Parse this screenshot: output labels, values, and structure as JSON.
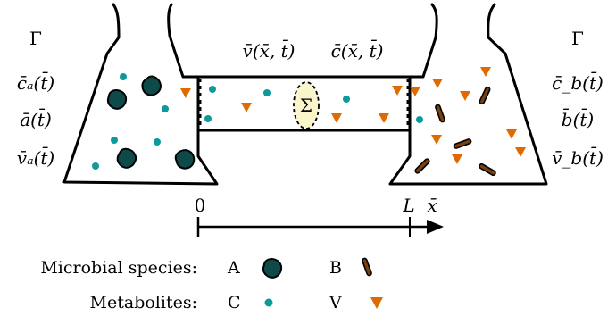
{
  "left_flask": {
    "gamma": "Γ",
    "c_label": "c̄ₐ(t̄)",
    "a_label": "ā(t̄)",
    "v_label": "v̄ₐ(t̄)"
  },
  "right_flask": {
    "gamma": "Γ",
    "c_label": "c̄_b(t̄)",
    "b_label": "b̄(t̄)",
    "v_label": "v̄_b(t̄)"
  },
  "channel": {
    "v_label": "v̄(x̄, t̄)",
    "c_label": "c̄(x̄, t̄)",
    "sigma": "Σ"
  },
  "axis": {
    "origin": "0",
    "end": "L",
    "variable": "x̄"
  },
  "legend": {
    "species_label": "Microbial species:",
    "species_a": "A",
    "species_b": "B",
    "metabolites_label": "Metabolites:",
    "metabolite_c": "C",
    "metabolite_v": "V"
  },
  "colors": {
    "species_a": "#0f4a4a",
    "species_b": "#7a4010",
    "metabolite_c": "#0e9a9a",
    "metabolite_v": "#e06a00",
    "sigma_fill": "#fbf5cc"
  }
}
